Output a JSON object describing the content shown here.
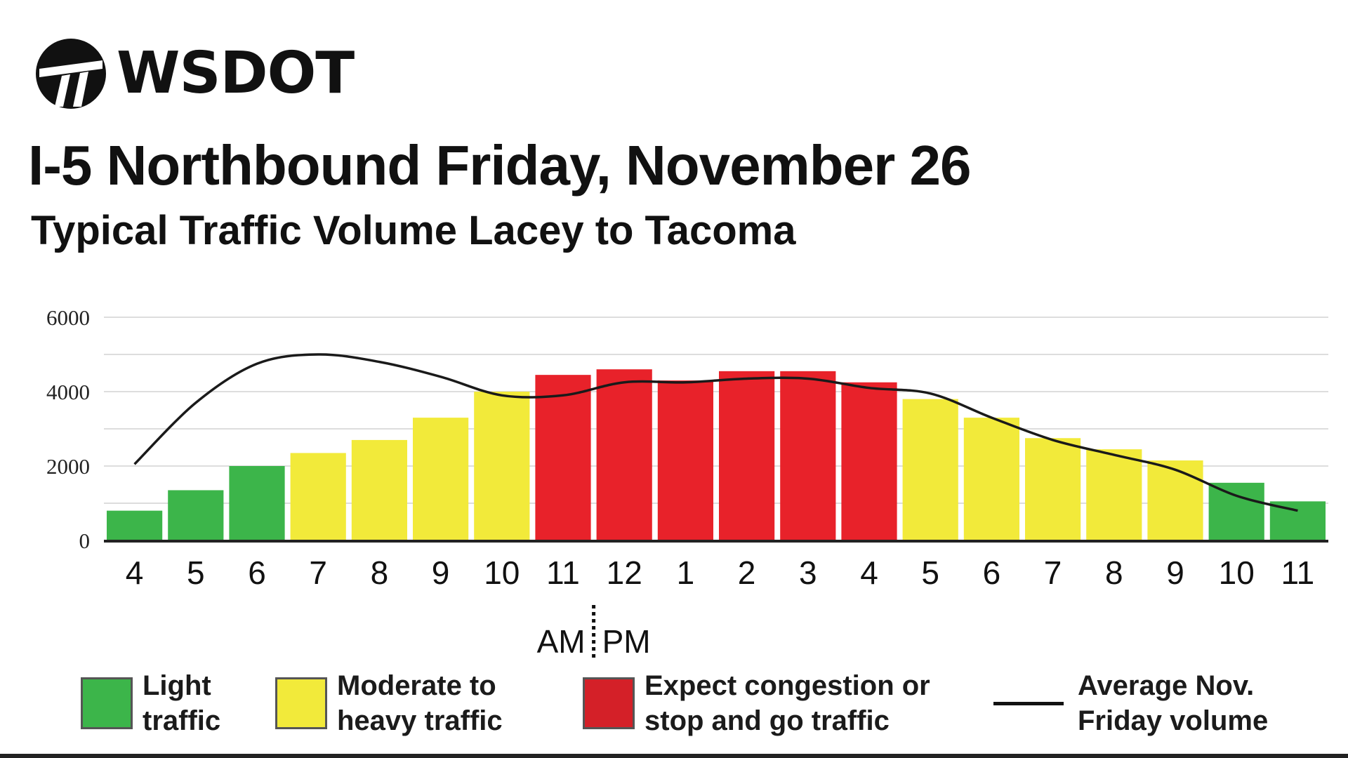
{
  "logo": {
    "text": "WSDOT",
    "icon": "wsdot-logo-icon"
  },
  "title": "I-5 Northbound Friday, November 26",
  "subtitle": "Typical Traffic Volume Lacey to Tacoma",
  "colors": {
    "light": "#3cb54a",
    "moderate": "#f2ea3a",
    "congestion": "#e8222a",
    "average_line": "#1a1a1a",
    "grid": "#dddddd"
  },
  "chart_data": {
    "type": "bar",
    "title": "I-5 Northbound Friday, November 26",
    "subtitle": "Typical Traffic Volume Lacey to Tacoma",
    "categories": [
      "4",
      "5",
      "6",
      "7",
      "8",
      "9",
      "10",
      "11",
      "12",
      "1",
      "2",
      "3",
      "4",
      "5",
      "6",
      "7",
      "8",
      "9",
      "10",
      "11"
    ],
    "values": [
      800,
      1350,
      2000,
      2350,
      2700,
      3300,
      4000,
      4450,
      4600,
      4300,
      4550,
      4550,
      4250,
      3800,
      3300,
      2750,
      2450,
      2150,
      1550,
      1050
    ],
    "traffic_levels": [
      "light",
      "light",
      "light",
      "moderate",
      "moderate",
      "moderate",
      "moderate",
      "congestion",
      "congestion",
      "congestion",
      "congestion",
      "congestion",
      "congestion",
      "moderate",
      "moderate",
      "moderate",
      "moderate",
      "moderate",
      "light",
      "light"
    ],
    "average_line": {
      "name": "Average Nov. Friday volume",
      "values": [
        2050,
        3700,
        4750,
        5000,
        4800,
        4400,
        3900,
        3900,
        4250,
        4250,
        4350,
        4350,
        4100,
        3950,
        3300,
        2700,
        2300,
        1900,
        1200,
        800
      ]
    },
    "ylim": [
      0,
      6000
    ],
    "yticks": [
      0,
      2000,
      4000,
      6000
    ],
    "gridlines": [
      0,
      1000,
      2000,
      3000,
      4000,
      5000,
      6000
    ],
    "grid": true,
    "am_label": "AM",
    "pm_label": "PM",
    "legend": [
      {
        "key": "light",
        "label_line1": "Light",
        "label_line2": "traffic"
      },
      {
        "key": "moderate",
        "label_line1": "Moderate to",
        "label_line2": "heavy traffic"
      },
      {
        "key": "congestion",
        "label_line1": "Expect congestion or",
        "label_line2": "stop and go traffic"
      },
      {
        "key": "average_line",
        "label_line1": "Average Nov.",
        "label_line2": "Friday volume"
      }
    ]
  }
}
